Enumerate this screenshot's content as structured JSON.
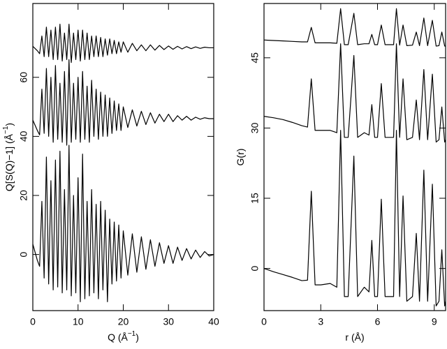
{
  "chart_data": [
    {
      "type": "line",
      "xlabel": [
        "Q (Å",
        "−1",
        ")"
      ],
      "ylabel": [
        "Q[S(Q)−1] (Å",
        "−1",
        ")"
      ],
      "xlim": [
        0,
        40
      ],
      "ylim": [
        -19,
        85
      ],
      "xticks": [
        0,
        10,
        20,
        30,
        40
      ],
      "yticks": [
        0,
        20,
        40,
        60
      ],
      "x": [
        0,
        1,
        1.5,
        2,
        2.5,
        3,
        3.5,
        4,
        4.5,
        5,
        5.5,
        6,
        6.5,
        7,
        7.5,
        8,
        8.5,
        9,
        9.5,
        10,
        10.5,
        11,
        11.5,
        12,
        12.5,
        13,
        13.5,
        14,
        14.5,
        15,
        15.5,
        16,
        16.5,
        17,
        17.5,
        18,
        18.5,
        19,
        19.5,
        20,
        21,
        22,
        23,
        24,
        25,
        26,
        27,
        28,
        29,
        30,
        31,
        32,
        33,
        34,
        35,
        36,
        37,
        38,
        39,
        40
      ],
      "series": [
        {
          "color": "#000000",
          "values": [
            3.5,
            -2,
            -4,
            18,
            -8,
            33,
            -10,
            25,
            -12,
            32,
            -11,
            35,
            -13,
            22,
            -12,
            37,
            -14,
            20,
            -13,
            26,
            -16,
            34,
            -15,
            18,
            -14,
            22,
            -13,
            17,
            -15,
            18,
            -12,
            15,
            -16,
            12,
            -10,
            11,
            -9,
            10,
            -8,
            8,
            -7,
            7,
            -6,
            6,
            -5,
            5,
            -4,
            4,
            -3,
            3,
            -3,
            2.5,
            -2,
            2,
            -1.5,
            1.5,
            -1,
            1,
            -0.5,
            0
          ]
        },
        {
          "color": "#000000",
          "values": [
            45.5,
            42,
            40.5,
            56,
            41,
            63,
            40,
            60,
            38,
            64,
            39,
            58,
            38,
            62,
            37,
            66,
            38,
            58,
            39,
            60,
            38,
            62,
            39,
            57,
            38,
            59,
            40,
            56,
            39,
            55,
            40,
            54,
            40,
            53,
            41,
            52,
            42,
            51,
            42,
            50,
            43,
            49,
            43.5,
            48.5,
            44,
            48,
            44.5,
            47.5,
            45,
            47.5,
            45,
            47,
            45.5,
            46.8,
            45.5,
            46.5,
            45.8,
            46.3,
            46,
            46
          ]
        },
        {
          "color": "#000000",
          "values": [
            70.5,
            69,
            68,
            74,
            67,
            77,
            67,
            76,
            66,
            77,
            66,
            78,
            65.5,
            75,
            66,
            78,
            65,
            75,
            66,
            76,
            65.5,
            76,
            66,
            75,
            66,
            74,
            67,
            74,
            67,
            73.5,
            67,
            73,
            67.5,
            73,
            68,
            72.5,
            68,
            72,
            68.5,
            72,
            68.5,
            71.5,
            69,
            71,
            69,
            71,
            69.2,
            70.8,
            69.4,
            70.6,
            69.5,
            70.5,
            69.6,
            70.4,
            69.7,
            70.3,
            69.8,
            70.2,
            70,
            70
          ]
        }
      ]
    },
    {
      "type": "line",
      "xlabel": [
        "r (Å)"
      ],
      "ylabel": [
        "G(r)"
      ],
      "xlim": [
        0,
        9.6
      ],
      "ylim": [
        -9,
        56.6
      ],
      "xticks": [
        0,
        3,
        6,
        9
      ],
      "yticks": [
        0,
        15,
        30,
        45
      ],
      "x": [
        0,
        0.5,
        1.0,
        1.5,
        2.0,
        2.3,
        2.5,
        2.7,
        3.0,
        3.5,
        3.85,
        4.05,
        4.25,
        4.45,
        4.75,
        4.95,
        5.3,
        5.55,
        5.7,
        5.85,
        6.0,
        6.2,
        6.4,
        6.7,
        6.85,
        7.0,
        7.17,
        7.35,
        7.55,
        7.85,
        8.05,
        8.22,
        8.45,
        8.65,
        8.9,
        9.1,
        9.25,
        9.4,
        9.55,
        9.6
      ],
      "series": [
        {
          "color": "#000000",
          "values": [
            0,
            -0.7,
            -1.3,
            -1.9,
            -2.6,
            -2.5,
            16.5,
            -3.5,
            -3.5,
            -3.2,
            -4,
            29.5,
            -6,
            -6,
            24,
            -6,
            -4,
            -5,
            6,
            -6,
            -6,
            14.8,
            -6,
            -6,
            -6,
            29.5,
            -6,
            15.5,
            -7,
            -6,
            7.5,
            -7,
            21,
            -7,
            18,
            -8,
            -7,
            4,
            -8,
            -7
          ]
        },
        {
          "color": "#000000",
          "values": [
            32.5,
            32.2,
            31.8,
            31.2,
            30.5,
            30.2,
            40.5,
            29.5,
            29.5,
            29.5,
            29,
            48,
            28,
            28,
            45.5,
            28,
            29,
            28.5,
            35,
            28,
            28,
            39.5,
            28,
            28,
            28,
            48,
            28,
            40.5,
            27.5,
            28,
            36,
            27.5,
            42.5,
            27.5,
            41.5,
            27,
            27.5,
            34.5,
            27,
            27.5
          ]
        },
        {
          "color": "#000000",
          "values": [
            48.8,
            48.7,
            48.6,
            48.5,
            48.4,
            48.4,
            51.5,
            48.2,
            48.2,
            48.2,
            48.1,
            55.5,
            47.8,
            47.8,
            54.5,
            47.8,
            48,
            48,
            50,
            47.8,
            47.8,
            52,
            47.8,
            47.8,
            47.8,
            55.5,
            47.7,
            52,
            47.6,
            47.7,
            50.5,
            47.6,
            53.5,
            47.6,
            53,
            47.5,
            47.6,
            50.5,
            47.5,
            47.5
          ]
        }
      ]
    }
  ]
}
